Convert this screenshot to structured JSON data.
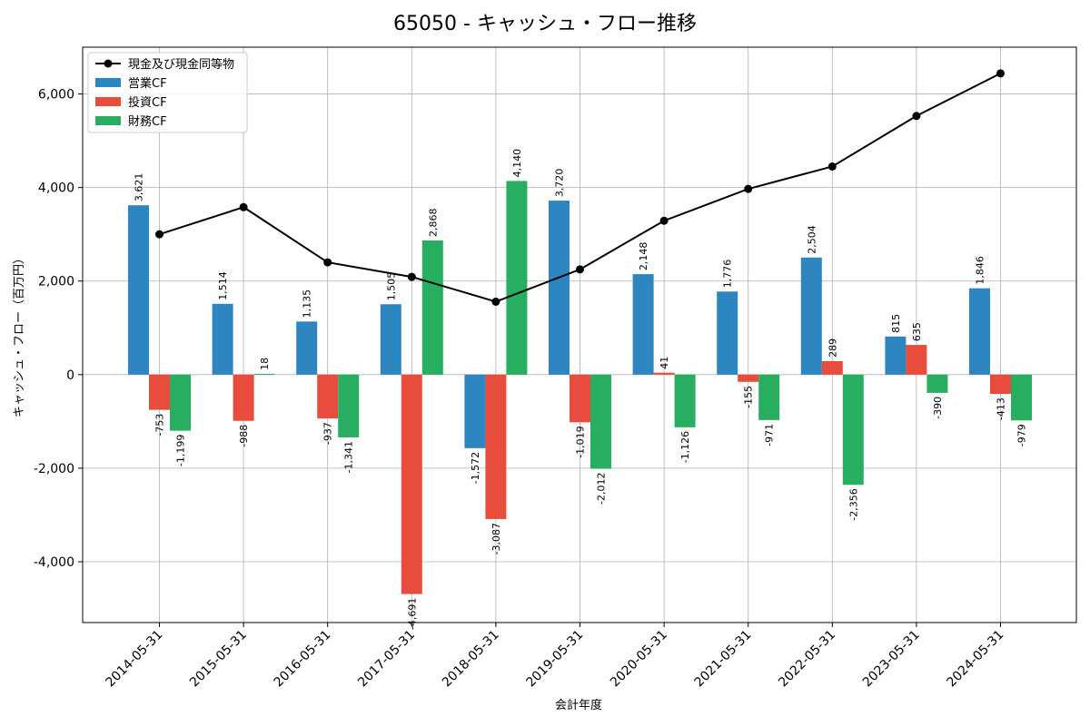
{
  "chart_data": {
    "type": "bar",
    "title": "65050 - キャッシュ・フロー推移",
    "xlabel": "会計年度",
    "ylabel": "キャッシュ・フロー（百万円）",
    "ylim": [
      -5300,
      7000
    ],
    "yticks": [
      -4000,
      -2000,
      0,
      2000,
      4000,
      6000
    ],
    "ytick_labels": [
      "-4,000",
      "-2,000",
      "0",
      "2,000",
      "4,000",
      "6,000"
    ],
    "grid": true,
    "legend_position": "top-left",
    "categories": [
      "2014-05-31",
      "2015-05-31",
      "2016-05-31",
      "2017-05-31",
      "2018-05-31",
      "2019-05-31",
      "2020-05-31",
      "2021-05-31",
      "2022-05-31",
      "2023-05-31",
      "2024-05-31"
    ],
    "series": [
      {
        "name": "営業CF",
        "kind": "bar",
        "color": "#2e86c1",
        "values": [
          3621,
          1514,
          1135,
          1505,
          -1572,
          3720,
          2148,
          1776,
          2504,
          815,
          1846
        ],
        "labels": [
          "3,621",
          "1,514",
          "1,135",
          "1,505",
          "-1,572",
          "3,720",
          "2,148",
          "1,776",
          "2,504",
          "815",
          "1,846"
        ]
      },
      {
        "name": "投資CF",
        "kind": "bar",
        "color": "#e74c3c",
        "values": [
          -753,
          -988,
          -937,
          -4691,
          -3087,
          -1019,
          41,
          -155,
          289,
          635,
          -413
        ],
        "labels": [
          "-753",
          "-988",
          "-937",
          "-4,691",
          "-3,087",
          "-1,019",
          "41",
          "-155",
          "289",
          "635",
          "-413"
        ]
      },
      {
        "name": "財務CF",
        "kind": "bar",
        "color": "#27ae60",
        "values": [
          -1199,
          18,
          -1341,
          2868,
          4140,
          -2012,
          -1126,
          -971,
          -2356,
          -390,
          -979
        ],
        "labels": [
          "-1,199",
          "18",
          "-1,341",
          "2,868",
          "4,140",
          "-2,012",
          "-1,126",
          "-971",
          "-2,356",
          "-390",
          "-979"
        ]
      },
      {
        "name": "現金及び現金同等物",
        "kind": "line",
        "color": "#000000",
        "values": [
          3000,
          3580,
          2400,
          2090,
          1560,
          2250,
          3290,
          3970,
          4450,
          5530,
          6440
        ]
      }
    ]
  }
}
